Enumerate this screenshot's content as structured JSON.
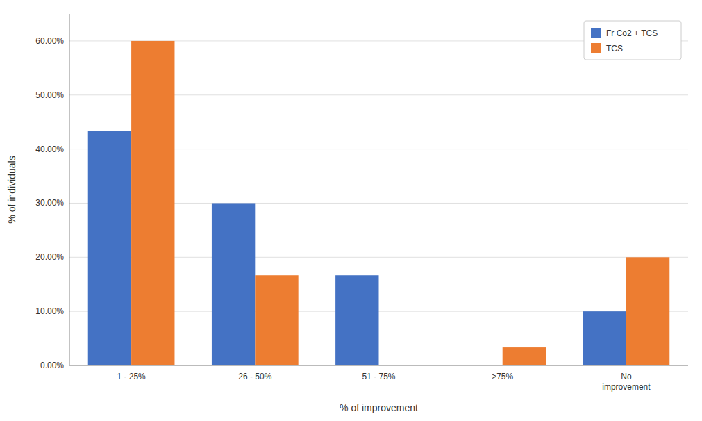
{
  "chart_data": {
    "type": "bar",
    "categories": [
      "1 - 25%",
      "26 - 50%",
      "51 - 75%",
      ">75%",
      "No\nimprovement"
    ],
    "series": [
      {
        "name": "Fr Co2 + TCS",
        "color": "#4472C4",
        "values": [
          0.4333,
          0.3,
          0.1667,
          0.0,
          0.1
        ]
      },
      {
        "name": "TCS",
        "color": "#ED7D31",
        "values": [
          0.6,
          0.1667,
          0.0,
          0.0333,
          0.2
        ]
      }
    ],
    "ylabel": "% of individuals",
    "xlabel": "% of improvement",
    "ylim": [
      0,
      0.65
    ],
    "yticks": [
      {
        "value": 0.0,
        "label": "0.00%"
      },
      {
        "value": 0.1,
        "label": "10.00%"
      },
      {
        "value": 0.2,
        "label": "20.00%"
      },
      {
        "value": 0.3,
        "label": "30.00%"
      },
      {
        "value": 0.4,
        "label": "40.00%"
      },
      {
        "value": 0.5,
        "label": "50.00%"
      },
      {
        "value": 0.6,
        "label": "60.00%"
      }
    ],
    "grid": true,
    "legend": "upper right"
  }
}
